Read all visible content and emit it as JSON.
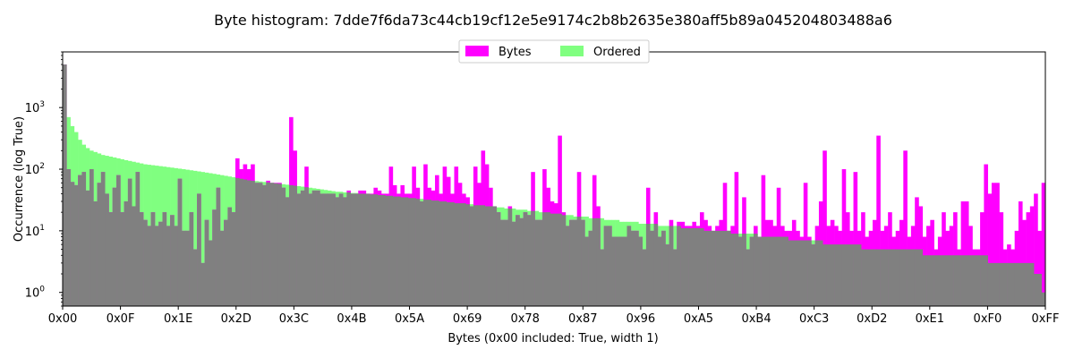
{
  "chart_data": {
    "type": "bar",
    "title": "Byte histogram: 7dde7f6da73c44cb19cf12e5e9174c2b8b2635e380aff5b89a045204803488a6",
    "xlabel": "Bytes (0x00 included: True, width 1)",
    "ylabel": "Occurrence (log True)",
    "yscale": "log",
    "ylim": [
      0.6,
      8000
    ],
    "xlim": [
      0,
      255
    ],
    "x_ticks": [
      "0x00",
      "0x0F",
      "0x1E",
      "0x2D",
      "0x3C",
      "0x4B",
      "0x5A",
      "0x69",
      "0x78",
      "0x87",
      "0x96",
      "0xA5",
      "0xB4",
      "0xC3",
      "0xD2",
      "0xE1",
      "0xF0",
      "0xFF"
    ],
    "y_ticks": [
      "10^0",
      "10^1",
      "10^2",
      "10^3"
    ],
    "legend": {
      "placement": "top-center"
    },
    "series": [
      {
        "name": "Bytes",
        "color": "#ff00ff",
        "values": [
          5000,
          100,
          62,
          55,
          80,
          90,
          45,
          100,
          30,
          60,
          90,
          40,
          20,
          50,
          80,
          20,
          30,
          70,
          25,
          90,
          20,
          15,
          12,
          20,
          12,
          14,
          20,
          12,
          18,
          12,
          70,
          10,
          10,
          20,
          5,
          40,
          3,
          15,
          7,
          22,
          50,
          10,
          15,
          24,
          20,
          150,
          100,
          120,
          100,
          120,
          60,
          60,
          55,
          65,
          60,
          60,
          60,
          50,
          35,
          700,
          200,
          40,
          45,
          110,
          40,
          45,
          45,
          40,
          40,
          40,
          40,
          35,
          40,
          35,
          45,
          40,
          40,
          45,
          45,
          40,
          40,
          50,
          45,
          40,
          40,
          110,
          55,
          40,
          55,
          40,
          40,
          110,
          50,
          30,
          120,
          50,
          45,
          80,
          40,
          110,
          75,
          40,
          110,
          60,
          40,
          35,
          25,
          110,
          60,
          200,
          120,
          50,
          25,
          20,
          15,
          15,
          25,
          14,
          18,
          16,
          20,
          18,
          90,
          15,
          15,
          100,
          50,
          30,
          28,
          350,
          20,
          12,
          15,
          15,
          90,
          15,
          8,
          10,
          80,
          25,
          5,
          12,
          12,
          8,
          8,
          8,
          8,
          12,
          10,
          10,
          8,
          5,
          50,
          10,
          20,
          8,
          10,
          6,
          15,
          5,
          14,
          14,
          12,
          12,
          14,
          12,
          20,
          15,
          12,
          10,
          12,
          15,
          60,
          10,
          12,
          90,
          8,
          35,
          5,
          8,
          12,
          8,
          80,
          15,
          15,
          12,
          50,
          12,
          10,
          10,
          15,
          10,
          8,
          60,
          8,
          6,
          12,
          30,
          200,
          12,
          15,
          12,
          10,
          100,
          20,
          10,
          90,
          10,
          20,
          8,
          10,
          15,
          350,
          10,
          12,
          20,
          8,
          10,
          15,
          200,
          8,
          12,
          35,
          25,
          8,
          12,
          15,
          5,
          8,
          20,
          10,
          12,
          20,
          5,
          30,
          30,
          12,
          5,
          5,
          20,
          120,
          40,
          60,
          60,
          20,
          5,
          6,
          5,
          10,
          30,
          15,
          20,
          25,
          40,
          10,
          60
        ]
      },
      {
        "name": "Ordered",
        "color": "#80ff80",
        "values": [
          5000,
          700,
          500,
          400,
          300,
          250,
          220,
          200,
          190,
          180,
          170,
          165,
          160,
          155,
          150,
          145,
          140,
          136,
          132,
          128,
          124,
          120,
          118,
          116,
          114,
          112,
          110,
          108,
          106,
          104,
          102,
          100,
          98,
          96,
          94,
          92,
          90,
          88,
          86,
          84,
          82,
          80,
          78,
          76,
          74,
          72,
          70,
          68,
          66,
          65,
          64,
          63,
          62,
          61,
          60,
          59,
          58,
          57,
          56,
          55,
          54,
          53,
          52,
          51,
          50,
          49,
          48,
          47,
          46,
          45,
          44,
          43,
          43,
          42,
          42,
          41,
          41,
          40,
          40,
          40,
          39,
          39,
          38,
          38,
          37,
          37,
          36,
          36,
          35,
          35,
          34,
          34,
          33,
          33,
          32,
          32,
          31,
          31,
          30,
          30,
          29,
          29,
          28,
          28,
          28,
          27,
          27,
          26,
          26,
          26,
          25,
          25,
          25,
          24,
          24,
          23,
          23,
          23,
          22,
          22,
          22,
          21,
          21,
          21,
          20,
          20,
          20,
          19,
          19,
          19,
          18,
          18,
          18,
          17,
          17,
          17,
          17,
          16,
          16,
          16,
          16,
          15,
          15,
          15,
          15,
          14,
          14,
          14,
          14,
          14,
          13,
          13,
          13,
          13,
          13,
          12,
          12,
          12,
          12,
          12,
          12,
          11,
          11,
          11,
          11,
          11,
          11,
          10,
          10,
          10,
          10,
          10,
          10,
          10,
          9,
          9,
          9,
          9,
          9,
          9,
          9,
          8,
          8,
          8,
          8,
          8,
          8,
          8,
          8,
          7,
          7,
          7,
          7,
          7,
          7,
          7,
          7,
          7,
          6,
          6,
          6,
          6,
          6,
          6,
          6,
          6,
          6,
          6,
          5,
          5,
          5,
          5,
          5,
          5,
          5,
          5,
          5,
          5,
          5,
          5,
          5,
          5,
          5,
          5,
          4,
          4,
          4,
          4,
          4,
          4,
          4,
          4,
          4,
          4,
          4,
          4,
          4,
          4,
          4,
          4,
          4,
          3,
          3,
          3,
          3,
          3,
          3,
          3,
          3,
          3,
          3,
          3,
          3,
          2,
          2,
          1
        ]
      }
    ]
  }
}
